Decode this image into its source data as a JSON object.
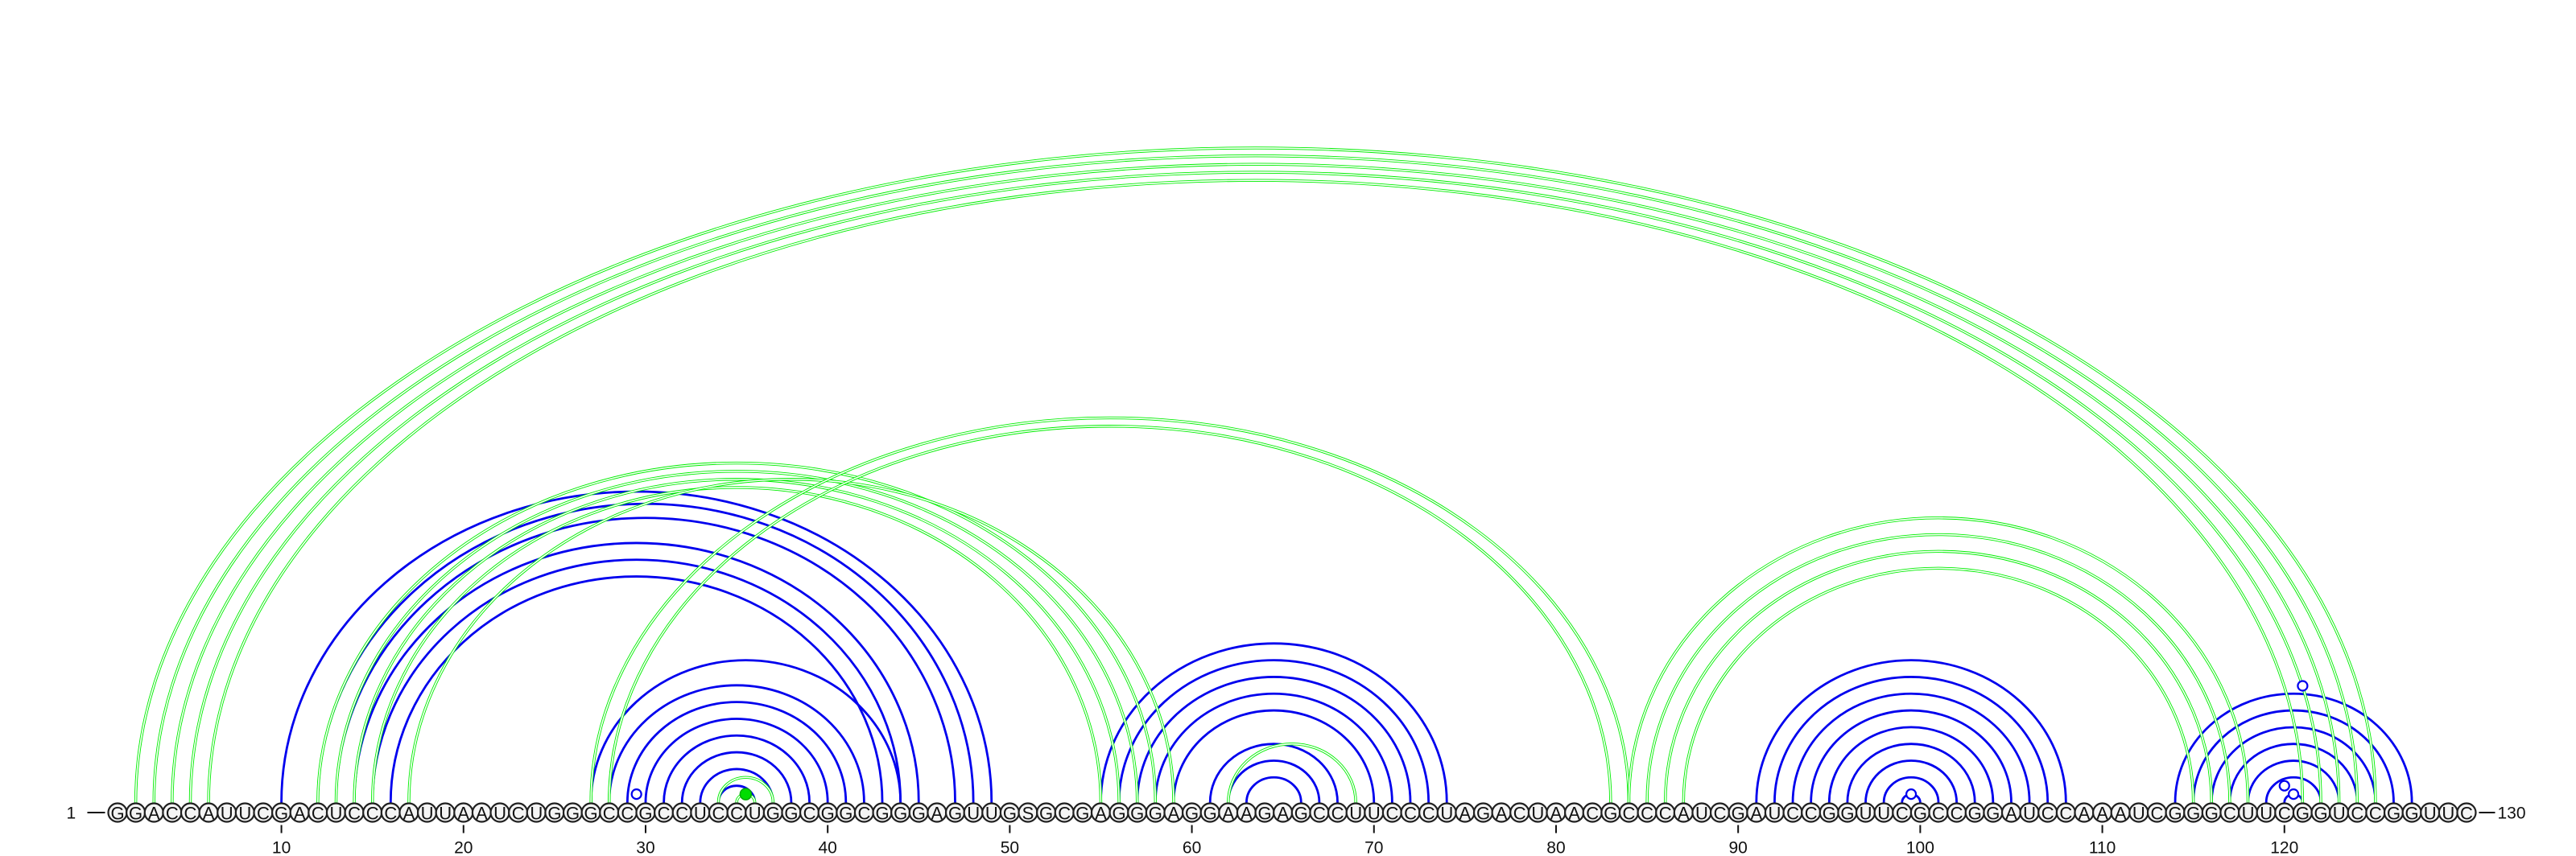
{
  "diagram": {
    "sequence": "GGACCAUUCGACUCCCAUUAAUCUGGGCCGCCUCCUGGCGGCGGGAGUUGSGCGAGGGAGGAAGAGCCUUCCCUAGACUAACGCCCAUCGAUCCGGUUCGCCGGAUCCAAAUCGGGCUUCGGUCCGGUUC",
    "length": 130,
    "start_label": "1",
    "end_label": "130",
    "tick_labels": [
      "10",
      "20",
      "30",
      "40",
      "50",
      "60",
      "70",
      "80",
      "90",
      "100",
      "110",
      "120"
    ],
    "tick_positions": [
      10,
      20,
      30,
      40,
      50,
      60,
      70,
      80,
      90,
      100,
      110,
      120
    ],
    "colors": {
      "primary_arcs": "#0000ee",
      "secondary_arcs": "#00ee00",
      "nucleotide_fill": "#f4f4f4"
    }
  },
  "chart_data": {
    "type": "arc",
    "series": [
      {
        "color": "#0000ee",
        "pairs": [
          [
            10,
            49
          ],
          [
            12,
            48
          ],
          [
            13,
            47
          ],
          [
            14,
            45
          ],
          [
            15,
            44
          ],
          [
            16,
            43
          ],
          [
            27,
            44
          ],
          [
            28,
            42
          ],
          [
            29,
            41
          ],
          [
            30,
            40
          ],
          [
            31,
            39
          ],
          [
            32,
            38
          ],
          [
            33,
            37
          ],
          [
            34,
            36
          ],
          [
            55,
            74
          ],
          [
            56,
            73
          ],
          [
            57,
            72
          ],
          [
            58,
            71
          ],
          [
            59,
            70
          ],
          [
            61,
            68
          ],
          [
            62,
            67
          ],
          [
            63,
            66
          ],
          [
            91,
            108
          ],
          [
            92,
            107
          ],
          [
            93,
            106
          ],
          [
            94,
            105
          ],
          [
            95,
            104
          ],
          [
            96,
            103
          ],
          [
            97,
            102
          ],
          [
            98,
            101
          ],
          [
            99,
            100
          ],
          [
            114,
            127
          ],
          [
            115,
            126
          ],
          [
            116,
            125
          ],
          [
            117,
            124
          ],
          [
            118,
            123
          ],
          [
            119,
            122
          ],
          [
            120,
            121
          ]
        ],
        "markers": [
          [
            29,
            30
          ],
          [
            99,
            100
          ],
          [
            119,
            121
          ],
          [
            120,
            121
          ],
          [
            121,
            121
          ]
        ]
      },
      {
        "color": "#00ee00",
        "pairs": [
          [
            2,
            125
          ],
          [
            3,
            124
          ],
          [
            4,
            123
          ],
          [
            5,
            122
          ],
          [
            6,
            121
          ],
          [
            12,
            58
          ],
          [
            13,
            57
          ],
          [
            14,
            56
          ],
          [
            15,
            55
          ],
          [
            17,
            59
          ],
          [
            27,
            84
          ],
          [
            28,
            83
          ],
          [
            34,
            37
          ],
          [
            35,
            36
          ],
          [
            62,
            69
          ],
          [
            84,
            118
          ],
          [
            85,
            117
          ],
          [
            86,
            116
          ],
          [
            87,
            115
          ]
        ],
        "markers": [
          [
            35,
            36
          ]
        ]
      }
    ]
  }
}
